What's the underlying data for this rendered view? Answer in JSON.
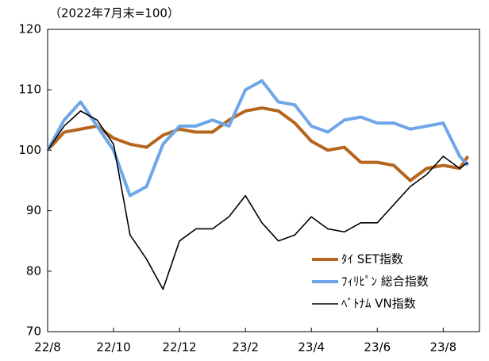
{
  "chart_data": {
    "type": "line",
    "subtitle": "（2022年7月末=100）",
    "x": [
      0,
      0.5,
      1,
      1.5,
      2,
      2.5,
      3,
      3.5,
      4,
      4.5,
      5,
      5.5,
      6,
      6.5,
      7,
      7.5,
      8,
      8.5,
      9,
      9.5,
      10,
      10.5,
      11,
      11.5,
      12,
      12.5,
      12.75
    ],
    "xlim": [
      0,
      13.1
    ],
    "xticks": [
      {
        "value": 0,
        "label": "22/8"
      },
      {
        "value": 2,
        "label": "22/10"
      },
      {
        "value": 4,
        "label": "22/12"
      },
      {
        "value": 6,
        "label": "23/2"
      },
      {
        "value": 8,
        "label": "23/4"
      },
      {
        "value": 10,
        "label": "23/6"
      },
      {
        "value": 12,
        "label": "23/8"
      }
    ],
    "ylim": [
      70,
      120
    ],
    "yticks": [
      70,
      80,
      90,
      100,
      110,
      120
    ],
    "grid": false,
    "legend": "lower right",
    "series": [
      {
        "name": "ﾀｲ SET指数",
        "color": "#b5651d",
        "values": [
          100,
          103,
          103.5,
          104,
          102,
          101,
          100.5,
          102.5,
          103.5,
          103,
          103,
          105,
          106.5,
          107,
          106.5,
          104.5,
          101.5,
          100,
          100.5,
          98,
          98,
          97.5,
          95,
          97,
          97.5,
          97,
          99
        ]
      },
      {
        "name": "ﾌｨﾘﾋﾟﾝ 総合指数",
        "color": "#6ea6e8",
        "values": [
          100,
          105,
          108,
          104,
          100,
          92.5,
          94,
          101,
          104,
          104,
          105,
          104,
          110,
          111.5,
          108,
          107.5,
          104,
          103,
          105,
          105.5,
          104.5,
          104.5,
          103.5,
          104,
          104.5,
          99,
          97.5
        ]
      },
      {
        "name": "ﾍﾞﾄﾅﾑ VN指数",
        "color": "#000000",
        "values": [
          100,
          104,
          106.5,
          105,
          101,
          86,
          82,
          77,
          85,
          87,
          87,
          89,
          92.5,
          88,
          85,
          86,
          89,
          87,
          86.5,
          88,
          88,
          91,
          94,
          96,
          99,
          97,
          98
        ]
      }
    ]
  }
}
